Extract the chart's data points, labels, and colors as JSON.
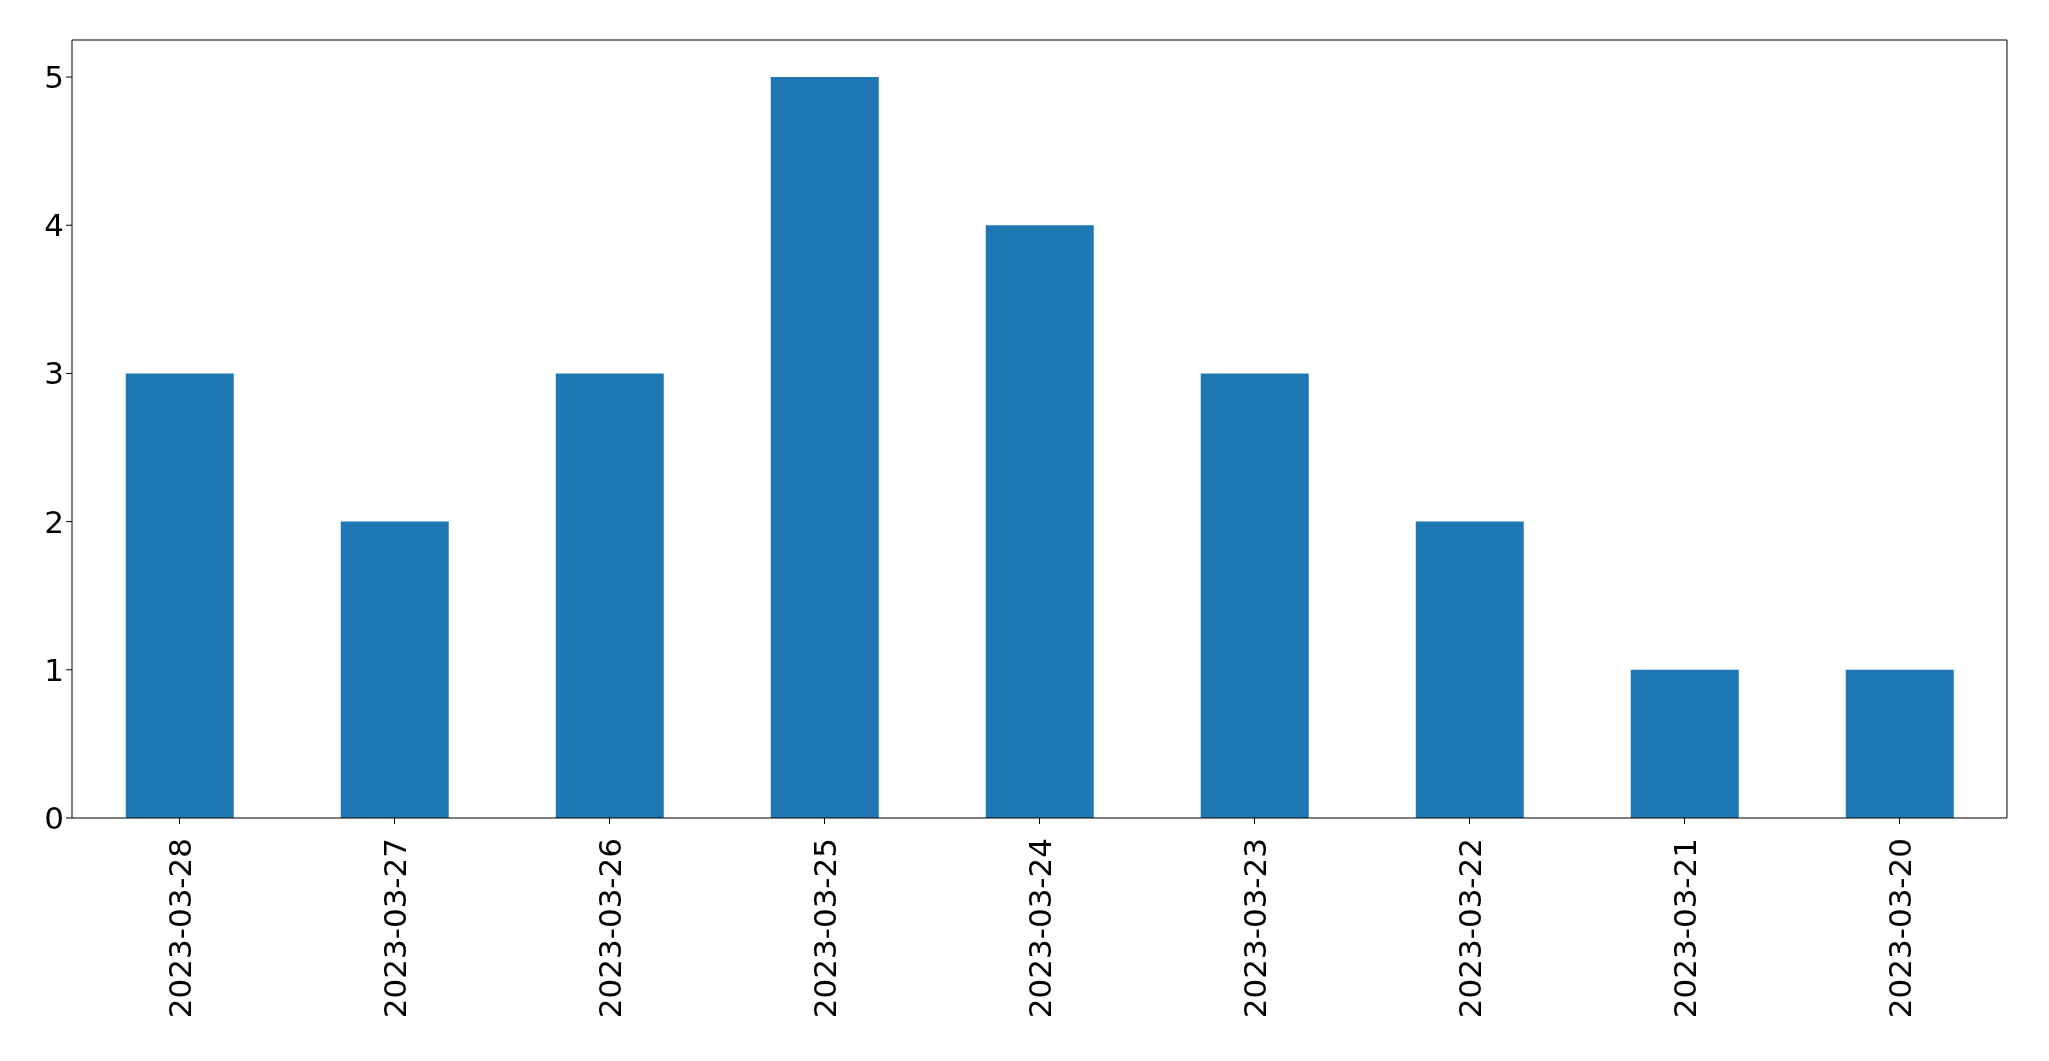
{
  "chart_data": {
    "type": "bar",
    "categories": [
      "2023-03-28",
      "2023-03-27",
      "2023-03-26",
      "2023-03-25",
      "2023-03-24",
      "2023-03-23",
      "2023-03-22",
      "2023-03-21",
      "2023-03-20"
    ],
    "values": [
      3,
      2,
      3,
      5,
      4,
      3,
      2,
      1,
      1
    ],
    "color": "#1f77b4",
    "ylim": [
      0,
      5.25
    ],
    "yticks": [
      0,
      1,
      2,
      3,
      4,
      5
    ],
    "grid": false
  }
}
